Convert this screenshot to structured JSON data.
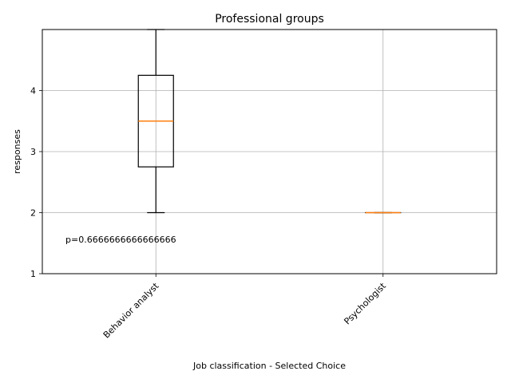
{
  "chart_data": {
    "type": "box",
    "title": "Professional groups",
    "xlabel": "Job classification - Selected Choice",
    "ylabel": "responses",
    "categories": [
      "Behavior analyst",
      "Psychologist"
    ],
    "ylim": [
      1,
      5
    ],
    "yticks": [
      1,
      2,
      3,
      4
    ],
    "grid": true,
    "boxes": [
      {
        "category": "Behavior analyst",
        "whisker_low": 2,
        "q1": 2.75,
        "median": 3.5,
        "q3": 4.25,
        "whisker_high": 5
      },
      {
        "category": "Psychologist",
        "whisker_low": 2,
        "q1": 2,
        "median": 2,
        "q3": 2,
        "whisker_high": 2
      }
    ],
    "annotation": "p=0.6666666666666666",
    "colors": {
      "box": "#000000",
      "median": "#ff7f0e",
      "grid": "#b0b0b0"
    }
  }
}
